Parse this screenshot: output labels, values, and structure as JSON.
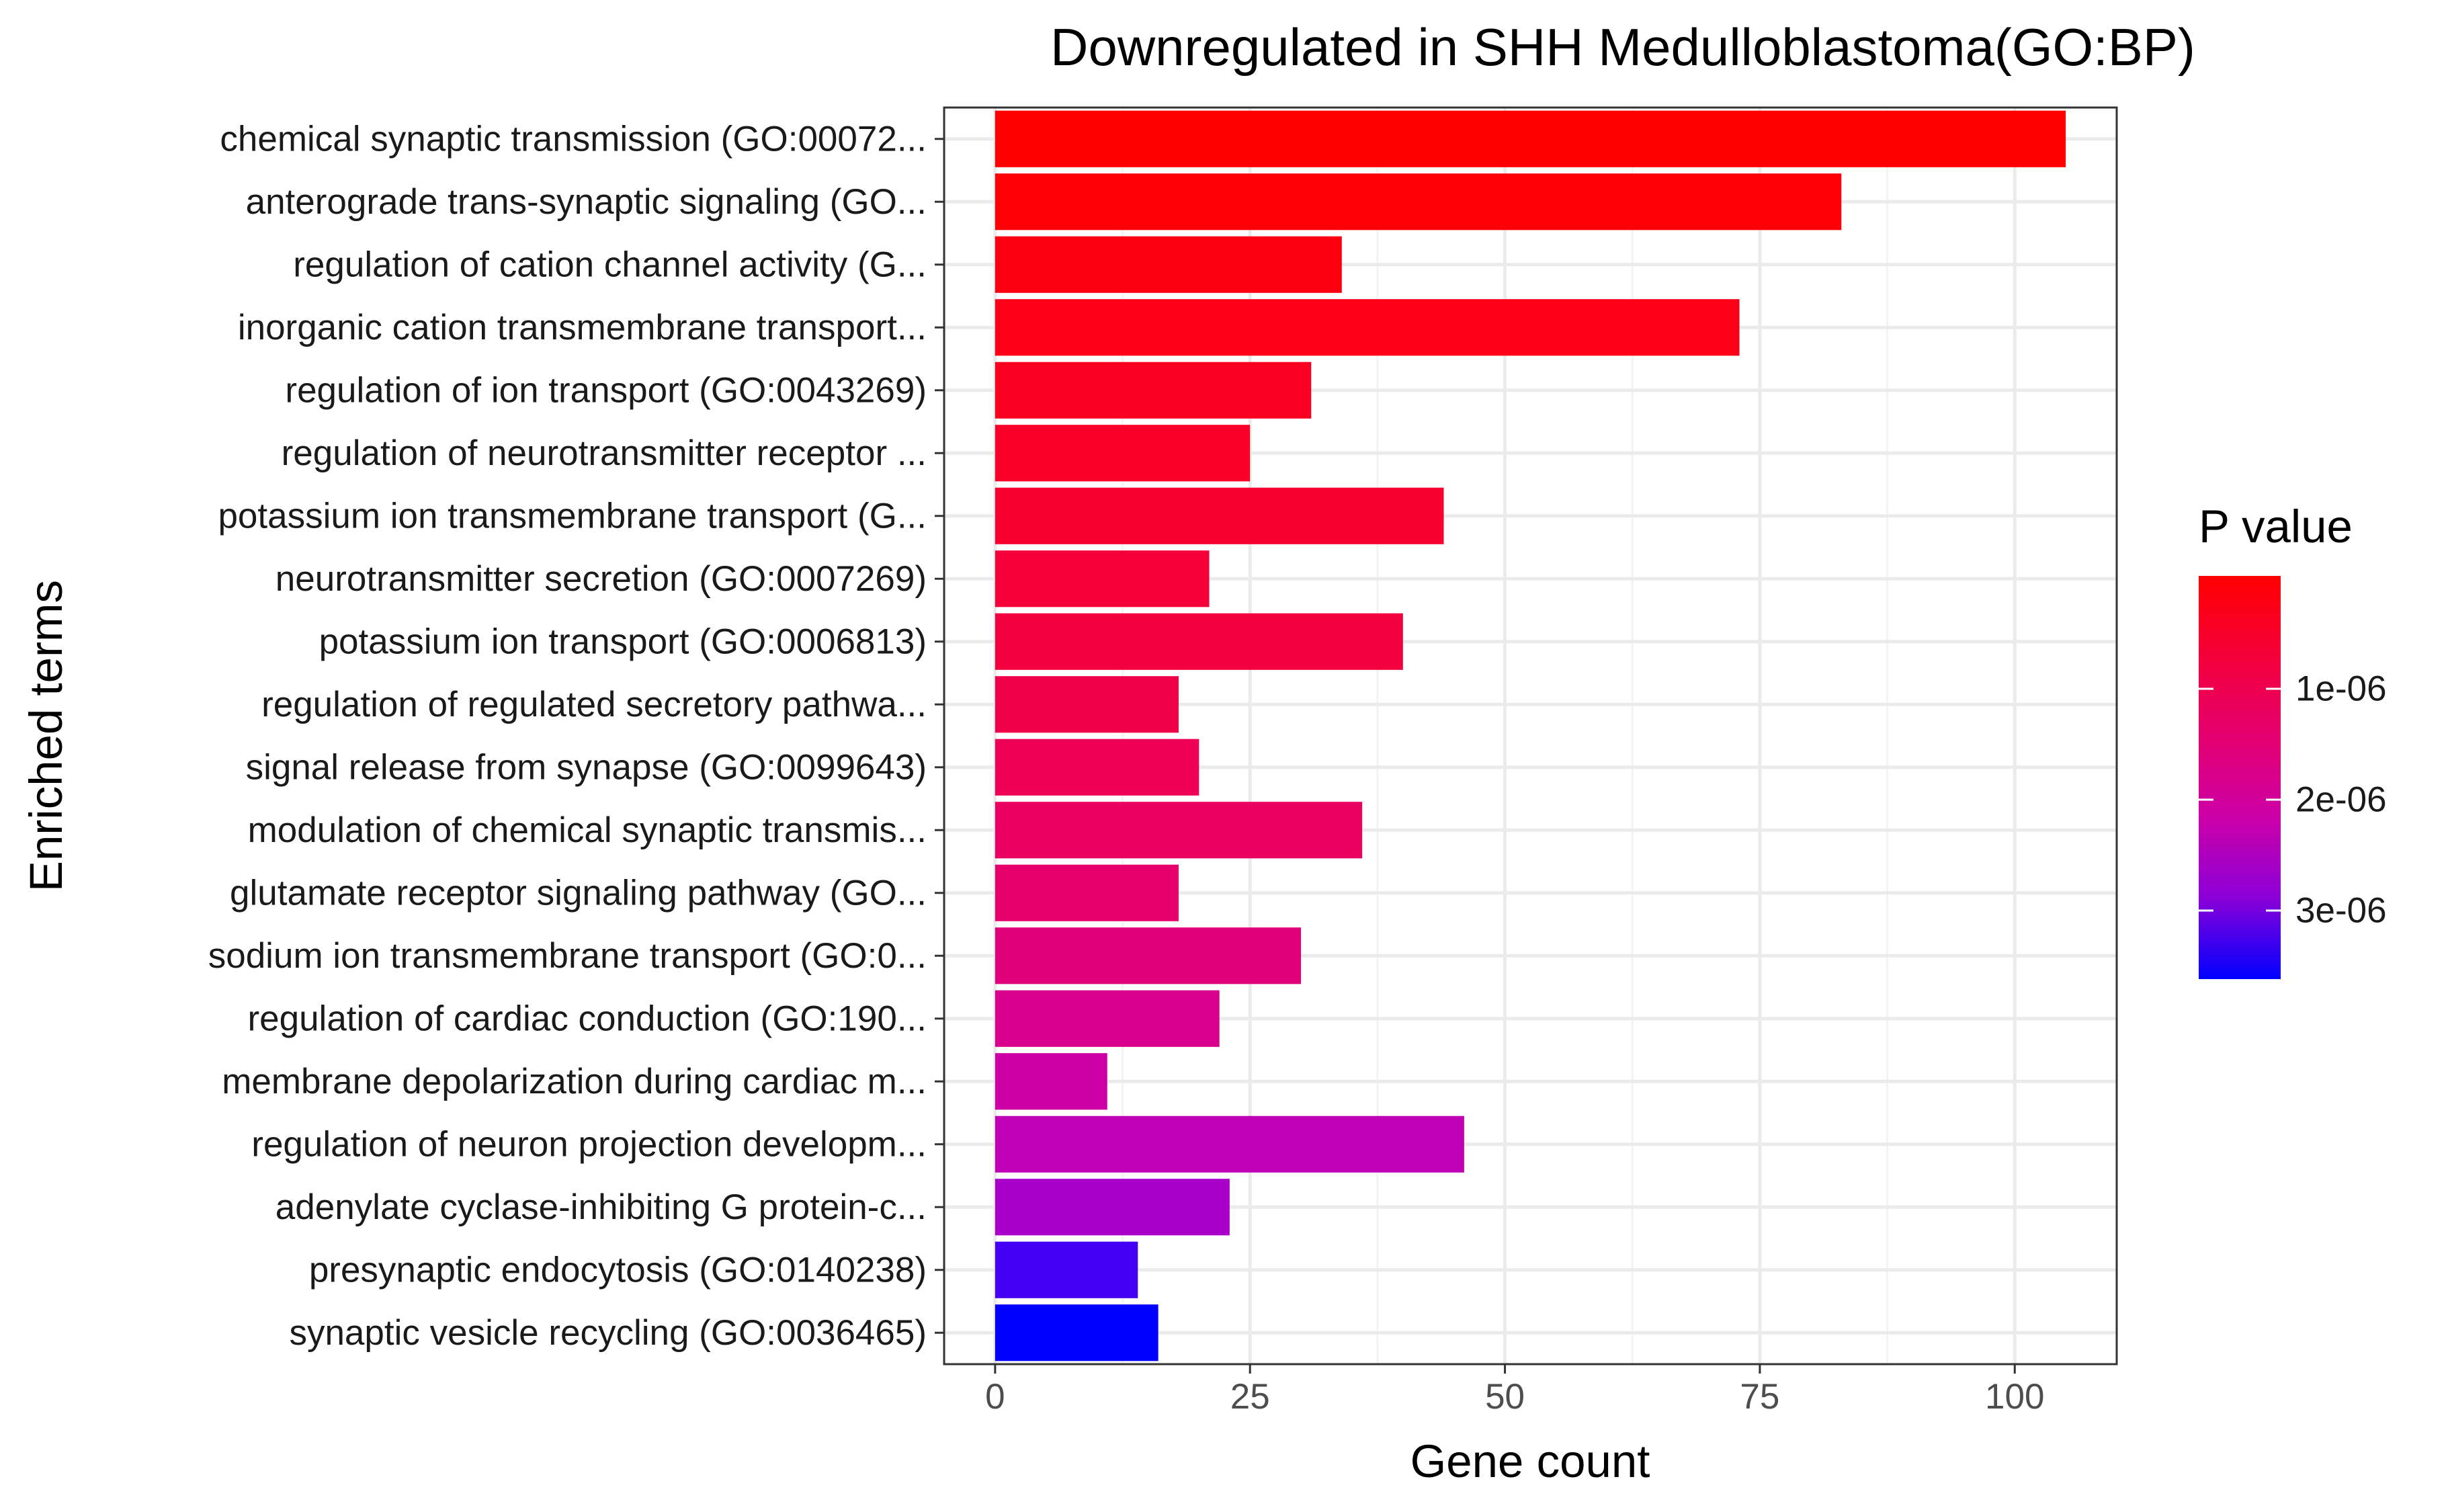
{
  "chart_data": {
    "type": "bar",
    "orientation": "horizontal",
    "title": "Downregulated in SHH Medulloblastoma(GO:BP)",
    "xlabel": "Gene count",
    "ylabel": "Enriched terms",
    "xlim": [
      -5,
      110
    ],
    "xticks": [
      0,
      25,
      50,
      75,
      100
    ],
    "grid": true,
    "categories": [
      "chemical synaptic transmission (GO:00072...",
      "anterograde trans-synaptic signaling (GO...",
      "regulation of cation channel activity (G...",
      "inorganic cation transmembrane transport...",
      "regulation of ion transport (GO:0043269)",
      "regulation of neurotransmitter receptor ...",
      "potassium ion transmembrane transport (G...",
      "neurotransmitter secretion (GO:0007269)",
      "potassium ion transport (GO:0006813)",
      "regulation of regulated secretory pathwa...",
      "signal release from synapse (GO:0099643)",
      "modulation of chemical synaptic transmis...",
      "glutamate receptor signaling pathway (GO...",
      "sodium ion transmembrane transport (GO:0...",
      "regulation of cardiac conduction (GO:190...",
      "membrane depolarization during cardiac m...",
      "regulation of neuron projection developm...",
      "adenylate cyclase-inhibiting G protein-c...",
      "presynaptic endocytosis (GO:0140238)",
      "synaptic vesicle recycling (GO:0036465)"
    ],
    "values": [
      105,
      83,
      34,
      73,
      31,
      25,
      44,
      21,
      40,
      18,
      20,
      36,
      18,
      30,
      22,
      11,
      46,
      23,
      14,
      16
    ],
    "colors": [
      "#ff0000",
      "#ff0007",
      "#fd0010",
      "#fc0018",
      "#fa0020",
      "#f90028",
      "#f70030",
      "#f50038",
      "#f30040",
      "#f1004a",
      "#ee0055",
      "#ea0060",
      "#e6006c",
      "#e0007a",
      "#d8008c",
      "#cc00a4",
      "#bf00b4",
      "#a800c8",
      "#4400f4",
      "#0000ff"
    ],
    "legend": {
      "title": "P value",
      "position": "right",
      "ticks": [
        "1e-06",
        "2e-06",
        "3e-06"
      ],
      "gradient": [
        "#ff0000",
        "#f4003a",
        "#e4006f",
        "#cc00a8",
        "#8a00d8",
        "#0000ff"
      ]
    }
  }
}
